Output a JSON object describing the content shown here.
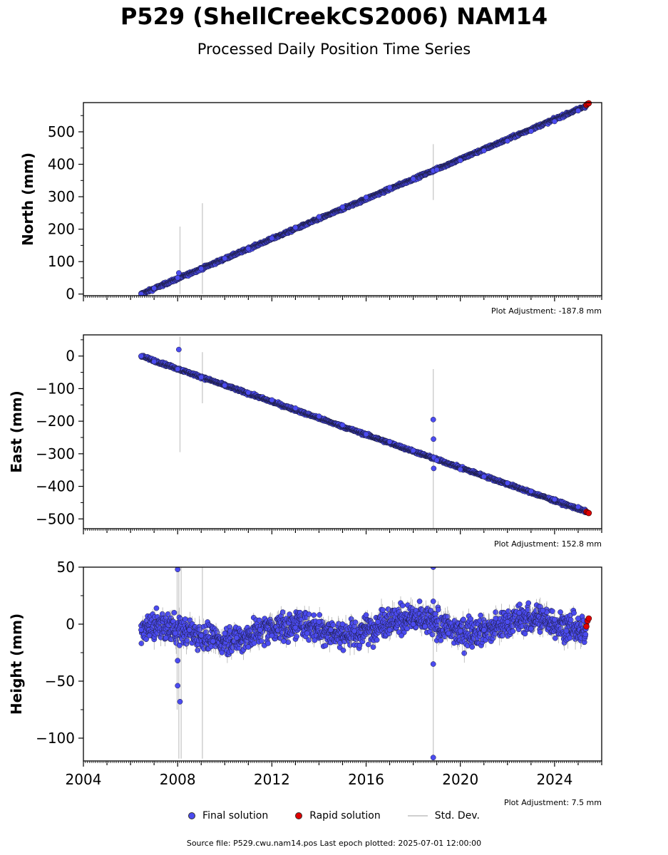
{
  "header": {
    "title": "P529 (ShellCreekCS2006) NAM14",
    "subtitle": "Processed Daily Position Time Series"
  },
  "legend": {
    "final": "Final solution",
    "rapid": "Rapid solution",
    "std": "Std. Dev."
  },
  "footer": {
    "text": "Source file: P529.cwu.nam14.pos  Last epoch plotted: 2025-07-01 12:00:00"
  },
  "colors": {
    "final": "#4b4bf0",
    "rapid": "#e00000",
    "std": "#cfcfcf"
  },
  "chart_data": [
    {
      "type": "scatter",
      "ylabel": "North (mm)",
      "adjustment": "Plot Adjustment: -187.8 mm",
      "xlim": [
        2004,
        2026
      ],
      "ylim": [
        -5,
        590
      ],
      "yticks": [
        0,
        100,
        200,
        300,
        400,
        500
      ],
      "series": [
        {
          "name": "Final solution",
          "x": [
            2006.45,
            2007.0,
            2008.0,
            2008.05,
            2009.0,
            2010.0,
            2011.0,
            2012.0,
            2013.0,
            2014.0,
            2015.0,
            2016.0,
            2017.0,
            2018.0,
            2018.85,
            2019.0,
            2020.0,
            2021.0,
            2022.0,
            2023.0,
            2024.0,
            2025.0,
            2025.35
          ],
          "y": [
            0,
            18,
            50,
            65,
            78,
            110,
            140,
            172,
            205,
            238,
            268,
            298,
            328,
            355,
            380,
            383,
            412,
            442,
            472,
            502,
            532,
            565,
            580
          ]
        },
        {
          "name": "Rapid solution",
          "x": [
            2025.35,
            2025.4,
            2025.45
          ],
          "y": [
            583,
            586,
            588
          ]
        }
      ],
      "std_bars": [
        {
          "x": 2008.1,
          "y0": 0,
          "y1": 208
        },
        {
          "x": 2009.05,
          "y0": 0,
          "y1": 280
        },
        {
          "x": 2018.85,
          "y0": 290,
          "y1": 462
        }
      ]
    },
    {
      "type": "scatter",
      "ylabel": "East (mm)",
      "adjustment": "Plot Adjustment: 152.8 mm",
      "xlim": [
        2004,
        2026
      ],
      "ylim": [
        -530,
        65
      ],
      "yticks": [
        0,
        -100,
        -200,
        -300,
        -400,
        -500
      ],
      "series": [
        {
          "name": "Final solution",
          "x": [
            2006.45,
            2007.0,
            2008.0,
            2008.05,
            2009.0,
            2010.0,
            2011.0,
            2012.0,
            2013.0,
            2014.0,
            2015.0,
            2016.0,
            2017.0,
            2018.0,
            2018.85,
            2018.86,
            2018.87,
            2018.88,
            2019.0,
            2020.0,
            2021.0,
            2022.0,
            2023.0,
            2024.0,
            2025.0,
            2025.35
          ],
          "y": [
            0,
            -17,
            -40,
            20,
            -65,
            -90,
            -112,
            -135,
            -160,
            -185,
            -212,
            -240,
            -263,
            -290,
            -195,
            -255,
            -345,
            -312,
            -320,
            -348,
            -370,
            -390,
            -415,
            -440,
            -463,
            -478
          ]
        },
        {
          "name": "Rapid solution",
          "x": [
            2025.35,
            2025.4,
            2025.45
          ],
          "y": [
            -478,
            -480,
            -482
          ]
        }
      ],
      "std_bars": [
        {
          "x": 2008.1,
          "y0": -295,
          "y1": 60
        },
        {
          "x": 2009.05,
          "y0": -145,
          "y1": 12
        },
        {
          "x": 2018.85,
          "y0": -530,
          "y1": -40
        }
      ]
    },
    {
      "type": "scatter",
      "ylabel": "Height (mm)",
      "adjustment": "Plot Adjustment: 7.5 mm",
      "xlim": [
        2004,
        2026
      ],
      "ylim": [
        -120,
        50
      ],
      "yticks": [
        50,
        0,
        -50,
        -100
      ],
      "xticks": [
        2004,
        2008,
        2012,
        2016,
        2020,
        2024
      ],
      "series": [
        {
          "name": "Final solution",
          "x": [
            2006.45,
            2006.8,
            2007.1,
            2007.5,
            2007.9,
            2008.0,
            2008.02,
            2008.04,
            2008.1,
            2008.5,
            2009.0,
            2009.5,
            2010.0,
            2010.5,
            2011.0,
            2011.5,
            2012.0,
            2012.5,
            2013.0,
            2013.5,
            2014.0,
            2014.5,
            2015.0,
            2015.5,
            2016.0,
            2016.5,
            2017.0,
            2017.5,
            2018.0,
            2018.5,
            2018.84,
            2018.86,
            2018.88,
            2019.0,
            2019.5,
            2020.0,
            2020.5,
            2021.0,
            2021.5,
            2022.0,
            2022.5,
            2023.0,
            2023.5,
            2024.0,
            2024.5,
            2025.0,
            2025.35
          ],
          "y": [
            -5,
            -10,
            14,
            -12,
            -8,
            48,
            -32,
            -54,
            -68,
            -5,
            -10,
            -15,
            -8,
            -12,
            -20,
            -5,
            -10,
            -15,
            -3,
            -8,
            2,
            -5,
            0,
            -6,
            8,
            2,
            -5,
            -10,
            0,
            -2,
            50,
            20,
            -35,
            -117,
            -8,
            -6,
            -20,
            -5,
            5,
            2,
            10,
            -4,
            12,
            4,
            -6,
            5,
            0
          ],
          "xfix": [
            2006.45,
            2006.8,
            2007.1,
            2007.5,
            2007.9,
            2008.0,
            2008.0,
            2008.0,
            2008.1,
            2008.5,
            2009.0,
            2009.5,
            2010.0,
            2010.5,
            2011.0,
            2011.5,
            2012.0,
            2012.5,
            2013.0,
            2013.5,
            2014.0,
            2014.5,
            2015.0,
            2015.5,
            2016.0,
            2016.5,
            2017.0,
            2017.5,
            2018.0,
            2018.5,
            2018.85,
            2018.85,
            2018.85,
            2018.85,
            2019.5,
            2020.0,
            2020.5,
            2021.0,
            2021.5,
            2022.0,
            2022.5,
            2023.0,
            2023.5,
            2024.0,
            2024.5,
            2025.0,
            2025.35
          ]
        },
        {
          "name": "Rapid solution",
          "x": [
            2025.35,
            2025.4,
            2025.45
          ],
          "y": [
            -2,
            3,
            5
          ]
        }
      ],
      "std_bars": [
        {
          "x": 2007.98,
          "y0": -75,
          "y1": 50
        },
        {
          "x": 2008.05,
          "y0": -118,
          "y1": 50
        },
        {
          "x": 2008.15,
          "y0": -118,
          "y1": 50
        },
        {
          "x": 2009.05,
          "y0": -118,
          "y1": 50
        },
        {
          "x": 2018.85,
          "y0": -118,
          "y1": 50
        }
      ]
    }
  ]
}
